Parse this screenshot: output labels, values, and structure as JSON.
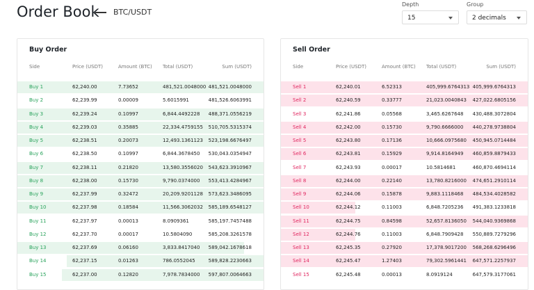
{
  "header": {
    "title": "Order Book",
    "pair": "BTC/USDT"
  },
  "controls": [
    {
      "label": "Depth",
      "value": "15"
    },
    {
      "label": "Group",
      "value": "2 decimals"
    }
  ],
  "panels": [
    {
      "title": "Buy Order",
      "columns": [
        "Side",
        "Price (USDT)",
        "Amount (BTC)",
        "Total (USDT)",
        "Sum (USDT)"
      ],
      "rows": [
        [
          "Buy 1",
          "62,240.00",
          "7.73652",
          "481,521.0048000",
          "481,521.0048000"
        ],
        [
          "Buy 2",
          "62,239.99",
          "0.00009",
          "5.6015991",
          "481,526.6063991"
        ],
        [
          "Buy 3",
          "62,239.24",
          "0.10997",
          "6,844.4492228",
          "488,371.0556219"
        ],
        [
          "Buy 4",
          "62,239.03",
          "0.35885",
          "22,334.4759155",
          "510,705.5315374"
        ],
        [
          "Buy 5",
          "62,238.51",
          "0.20073",
          "12,493.1361123",
          "523,198.6676497"
        ],
        [
          "Buy 6",
          "62,238.50",
          "0.10997",
          "6,844.3678450",
          "530,043.0354947"
        ],
        [
          "Buy 7",
          "62,238.11",
          "0.21820",
          "13,580.3556020",
          "543,623.3910967"
        ],
        [
          "Buy 8",
          "62,238.00",
          "0.15730",
          "9,790.0374000",
          "553,413.4284967"
        ],
        [
          "Buy 9",
          "62,237.99",
          "0.32472",
          "20,209.9201128",
          "573,623.3486095"
        ],
        [
          "Buy 10",
          "62,237.98",
          "0.18584",
          "11,566.3062032",
          "585,189.6548127"
        ],
        [
          "Buy 11",
          "62,237.97",
          "0.00013",
          "8.0909361",
          "585,197.7457488"
        ],
        [
          "Buy 12",
          "62,237.70",
          "0.00017",
          "10.5804090",
          "585,208.3261578"
        ],
        [
          "Buy 13",
          "62,237.69",
          "0.06160",
          "3,833.8417040",
          "589,042.1678618"
        ],
        [
          "Buy 14",
          "62,237.15",
          "0.01263",
          "786.0552045",
          "589,828.2230663"
        ],
        [
          "Buy 15",
          "62,237.00",
          "0.12820",
          "7,978.7834000",
          "597,807.0064663"
        ]
      ]
    },
    {
      "title": "Sell Order",
      "columns": [
        "Side",
        "Price (USDT)",
        "Amount (BTC)",
        "Total (USDT)",
        "Sum (USDT)"
      ],
      "rows": [
        [
          "Sell 1",
          "62,240.01",
          "6.52313",
          "405,999.6764313",
          "405,999.6764313"
        ],
        [
          "Sell 2",
          "62,240.59",
          "0.33777",
          "21,023.0040843",
          "427,022.6805156"
        ],
        [
          "Sell 3",
          "62,241.86",
          "0.05568",
          "3,465.6267648",
          "430,488.3072804"
        ],
        [
          "Sell 4",
          "62,242.00",
          "0.15730",
          "9,790.6666000",
          "440,278.9738804"
        ],
        [
          "Sell 5",
          "62,243.80",
          "0.17136",
          "10,666.0975680",
          "450,945.0714484"
        ],
        [
          "Sell 6",
          "62,243.81",
          "0.15929",
          "9,914.8164949",
          "460,859.8879433"
        ],
        [
          "Sell 7",
          "62,243.93",
          "0.00017",
          "10.5814681",
          "460,870.4694114"
        ],
        [
          "Sell 8",
          "62,244.00",
          "0.22140",
          "13,780.8216000",
          "474,651.2910114"
        ],
        [
          "Sell 9",
          "62,244.06",
          "0.15878",
          "9,883.1118468",
          "484,534.4028582"
        ],
        [
          "Sell 10",
          "62,244.12",
          "0.11003",
          "6,848.7205236",
          "491,383.1233818"
        ],
        [
          "Sell 11",
          "62,244.75",
          "0.84598",
          "52,657.8136050",
          "544,040.9369868"
        ],
        [
          "Sell 12",
          "62,244.76",
          "0.11003",
          "6,848.7909428",
          "550,889.7279296"
        ],
        [
          "Sell 13",
          "62,245.35",
          "0.27920",
          "17,378.9017200",
          "568,268.6296496"
        ],
        [
          "Sell 14",
          "62,245.47",
          "1.27403",
          "79,302.5961441",
          "647,571.2257937"
        ],
        [
          "Sell 15",
          "62,245.48",
          "0.00013",
          "8.0919124",
          "647,579.3177061"
        ]
      ]
    }
  ]
}
